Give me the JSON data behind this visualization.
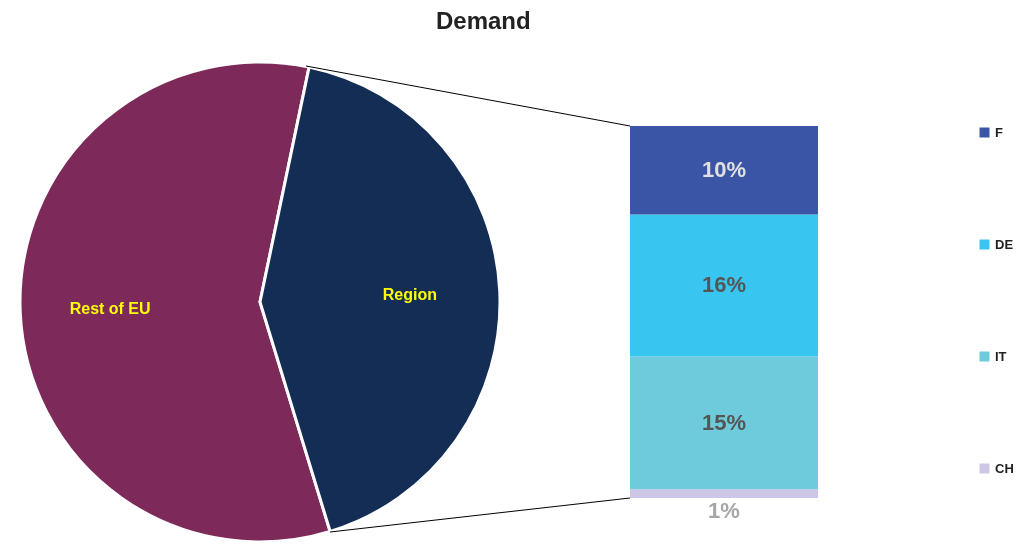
{
  "chart_data": [
    {
      "type": "pie",
      "title": "Demand",
      "categories": [
        "Rest of EU",
        "Region"
      ],
      "values": [
        58,
        42
      ],
      "colors": [
        "#7d2a5a",
        "#132d55"
      ]
    },
    {
      "type": "bar",
      "stacked": true,
      "categories": [
        null
      ],
      "legend": "right",
      "tick_labels": false,
      "series": [
        {
          "name": "CH",
          "color": "#cdc6e6",
          "values": [
            1
          ],
          "value_labels": [
            "1%"
          ]
        },
        {
          "name": "IT",
          "color": "#6ecbdc",
          "values": [
            15
          ],
          "value_labels": [
            "15%"
          ]
        },
        {
          "name": "DE",
          "color": "#38c6f0",
          "values": [
            16
          ],
          "value_labels": [
            "16%"
          ]
        },
        {
          "name": "F",
          "color": "#3a55a6",
          "values": [
            10
          ],
          "value_labels": [
            "10%"
          ]
        }
      ]
    }
  ]
}
